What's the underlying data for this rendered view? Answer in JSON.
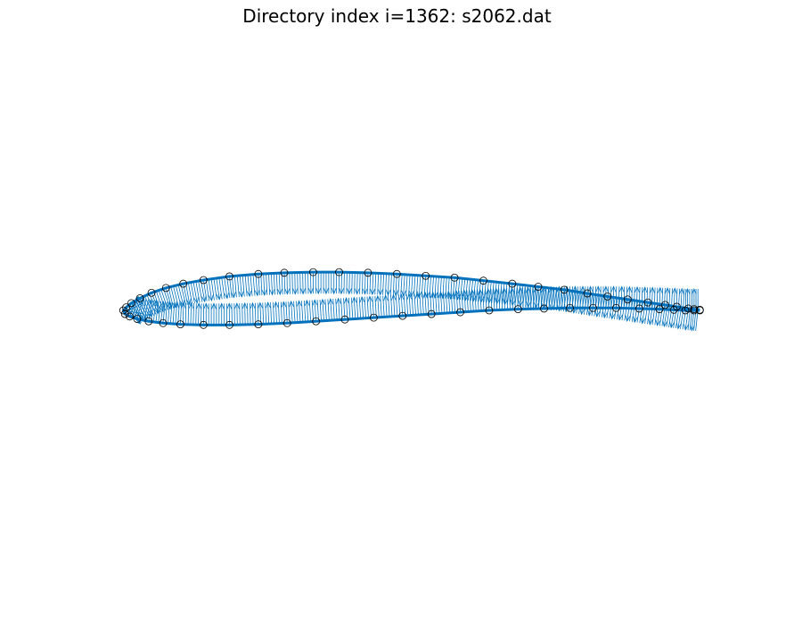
{
  "chart_data": {
    "type": "scatter",
    "title": "Directory index i=1362: s2062.dat",
    "xlabel": "",
    "ylabel": "",
    "axes_visible": false,
    "grid": false,
    "legend": "none",
    "aspect": "equal",
    "xlim": [
      -0.035,
      1.035
    ],
    "ylim": [
      -0.44,
      0.44
    ],
    "colors": {
      "outline": "#0072BD",
      "normals": "#0072BD",
      "markers": "#000000"
    },
    "series": [
      {
        "role": "airfoil-surface-points",
        "x": [
          1.0,
          0.99,
          0.98,
          0.96,
          0.94,
          0.91,
          0.875,
          0.84,
          0.805,
          0.765,
          0.72,
          0.675,
          0.625,
          0.575,
          0.525,
          0.475,
          0.425,
          0.375,
          0.33,
          0.28,
          0.235,
          0.185,
          0.14,
          0.105,
          0.075,
          0.05,
          0.03,
          0.015,
          0.006,
          0.001,
          0.004,
          0.012,
          0.025,
          0.045,
          0.07,
          0.1,
          0.14,
          0.185,
          0.235,
          0.285,
          0.335,
          0.385,
          0.435,
          0.485,
          0.535,
          0.585,
          0.635,
          0.685,
          0.73,
          0.775,
          0.815,
          0.855,
          0.895,
          0.93,
          0.955,
          0.975,
          0.99,
          1.0
        ],
        "y": [
          0.001,
          0.002,
          0.003,
          0.006,
          0.009,
          0.013,
          0.018,
          0.023,
          0.028,
          0.034,
          0.039,
          0.044,
          0.049,
          0.054,
          0.057,
          0.06,
          0.062,
          0.063,
          0.063,
          0.062,
          0.06,
          0.056,
          0.05,
          0.044,
          0.037,
          0.029,
          0.02,
          0.012,
          0.005,
          0.0,
          -0.006,
          -0.01,
          -0.014,
          -0.018,
          -0.021,
          -0.023,
          -0.024,
          -0.024,
          -0.023,
          -0.021,
          -0.018,
          -0.015,
          -0.012,
          -0.009,
          -0.006,
          -0.003,
          0.0,
          0.002,
          0.003,
          0.004,
          0.004,
          0.004,
          0.003,
          0.002,
          0.001,
          0.0,
          0.0,
          0.0
        ]
      }
    ],
    "normal_vectors": "outward unit normals drawn as quiver arrows along the surface"
  }
}
